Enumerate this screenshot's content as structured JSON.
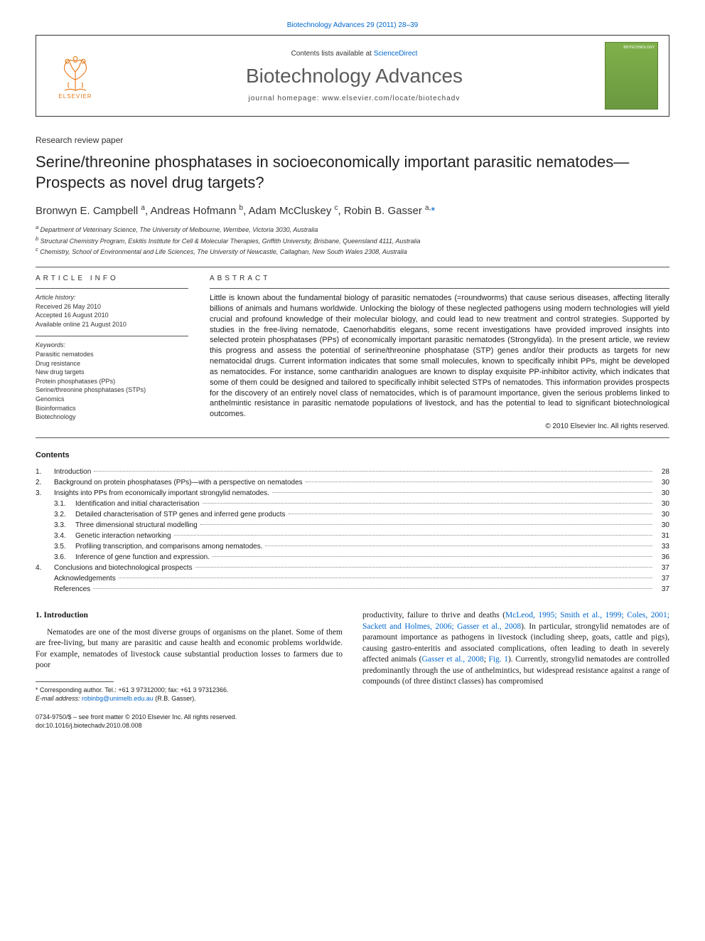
{
  "top_citation": "Biotechnology Advances 29 (2011) 28–39",
  "header": {
    "contents_prefix": "Contents lists available at ",
    "contents_link": "ScienceDirect",
    "journal": "Biotechnology Advances",
    "homepage_label": "journal homepage: www.elsevier.com/locate/biotechadv",
    "publisher": "ELSEVIER",
    "cover_tag": "BIOTECHNOLOGY"
  },
  "paper_type": "Research review paper",
  "title": "Serine/threonine phosphatases in socioeconomically important parasitic nematodes—Prospects as novel drug targets?",
  "authors_html": "Bronwyn E. Campbell <sup>a</sup>, Andreas Hofmann <sup>b</sup>, Adam McCluskey <sup>c</sup>, Robin B. Gasser <sup>a,</sup>",
  "affiliations": [
    "a Department of Veterinary Science, The University of Melbourne, Werribee, Victoria 3030, Australia",
    "b Structural Chemistry Program, Eskitis Institute for Cell & Molecular Therapies, Griffith University, Brisbane, Queensland 4111, Australia",
    "c Chemistry, School of Environmental and Life Sciences, The University of Newcastle, Callaghan, New South Wales 2308, Australia"
  ],
  "article_info_heading": "ARTICLE INFO",
  "abstract_heading": "ABSTRACT",
  "history_label": "Article history:",
  "history": [
    "Received 26 May 2010",
    "Accepted 16 August 2010",
    "Available online 21 August 2010"
  ],
  "keywords_label": "Keywords:",
  "keywords": [
    "Parasitic nematodes",
    "Drug resistance",
    "New drug targets",
    "Protein phosphatases (PPs)",
    "Serine/threonine phosphatases (STPs)",
    "Genomics",
    "Bioinformatics",
    "Biotechnology"
  ],
  "abstract": "Little is known about the fundamental biology of parasitic nematodes (=roundworms) that cause serious diseases, affecting literally billions of animals and humans worldwide. Unlocking the biology of these neglected pathogens using modern technologies will yield crucial and profound knowledge of their molecular biology, and could lead to new treatment and control strategies. Supported by studies in the free-living nematode, Caenorhabditis elegans, some recent investigations have provided improved insights into selected protein phosphatases (PPs) of economically important parasitic nematodes (Strongylida). In the present article, we review this progress and assess the potential of serine/threonine phosphatase (STP) genes and/or their products as targets for new nematocidal drugs. Current information indicates that some small molecules, known to specifically inhibit PPs, might be developed as nematocides. For instance, some cantharidin analogues are known to display exquisite PP-inhibitor activity, which indicates that some of them could be designed and tailored to specifically inhibit selected STPs of nematodes. This information provides prospects for the discovery of an entirely novel class of nematocides, which is of paramount importance, given the serious problems linked to anthelmintic resistance in parasitic nematode populations of livestock, and has the potential to lead to significant biotechnological outcomes.",
  "copyright": "© 2010 Elsevier Inc. All rights reserved.",
  "contents_label": "Contents",
  "toc": [
    {
      "n": "1.",
      "t": "Introduction",
      "p": "28",
      "lvl": 0
    },
    {
      "n": "2.",
      "t": "Background on protein phosphatases (PPs)—with a perspective on nematodes",
      "p": "30",
      "lvl": 0
    },
    {
      "n": "3.",
      "t": "Insights into PPs from economically important strongylid nematodes.",
      "p": "30",
      "lvl": 0
    },
    {
      "n": "3.1.",
      "t": "Identification and initial characterisation",
      "p": "30",
      "lvl": 1
    },
    {
      "n": "3.2.",
      "t": "Detailed characterisation of STP genes and inferred gene products",
      "p": "30",
      "lvl": 1
    },
    {
      "n": "3.3.",
      "t": "Three dimensional structural modelling",
      "p": "30",
      "lvl": 1
    },
    {
      "n": "3.4.",
      "t": "Genetic interaction networking",
      "p": "31",
      "lvl": 1
    },
    {
      "n": "3.5.",
      "t": "Profiling transcription, and comparisons among nematodes.",
      "p": "33",
      "lvl": 1
    },
    {
      "n": "3.6.",
      "t": "Inference of gene function and expression.",
      "p": "36",
      "lvl": 1
    },
    {
      "n": "4.",
      "t": "Conclusions and biotechnological prospects",
      "p": "37",
      "lvl": 0
    },
    {
      "n": "",
      "t": "Acknowledgements",
      "p": "37",
      "lvl": 0
    },
    {
      "n": "",
      "t": "References",
      "p": "37",
      "lvl": 0
    }
  ],
  "intro_heading": "1. Introduction",
  "intro_p1": "Nematodes are one of the most diverse groups of organisms on the planet. Some of them are free-living, but many are parasitic and cause health and economic problems worldwide. For example, nematodes of livestock cause substantial production losses to farmers due to poor",
  "intro_p2a": "productivity, failure to thrive and deaths (",
  "intro_ref1": "McLeod, 1995; Smith et al., 1999; Coles, 2001; Sackett and Holmes, 2006; Gasser et al., 2008",
  "intro_p2b": "). In particular, strongylid nematodes are of paramount importance as pathogens in livestock (including sheep, goats, cattle and pigs), causing gastro-enteritis and associated complications, often leading to death in severely affected animals (",
  "intro_ref2": "Gasser et al., 2008",
  "intro_p2c": "; ",
  "intro_ref3": "Fig. 1",
  "intro_p2d": "). Currently, strongylid nematodes are controlled predominantly through the use of anthelmintics, but widespread resistance against a range of compounds (of three distinct classes) has compromised",
  "corr_note": "* Corresponding author. Tel.: +61 3 97312000; fax: +61 3 97312366.",
  "email_label": "E-mail address: ",
  "email": "robinbg@unimelb.edu.au",
  "email_suffix": " (R.B. Gasser).",
  "issn_line": "0734-9750/$ – see front matter © 2010 Elsevier Inc. All rights reserved.",
  "doi_line": "doi:10.1016/j.biotechadv.2010.08.008",
  "colors": {
    "link": "#0066cc",
    "elsevier_orange": "#e67817",
    "cover_green": "#7fb04a",
    "text": "#1a1a1a",
    "gray": "#5a5a5a"
  }
}
